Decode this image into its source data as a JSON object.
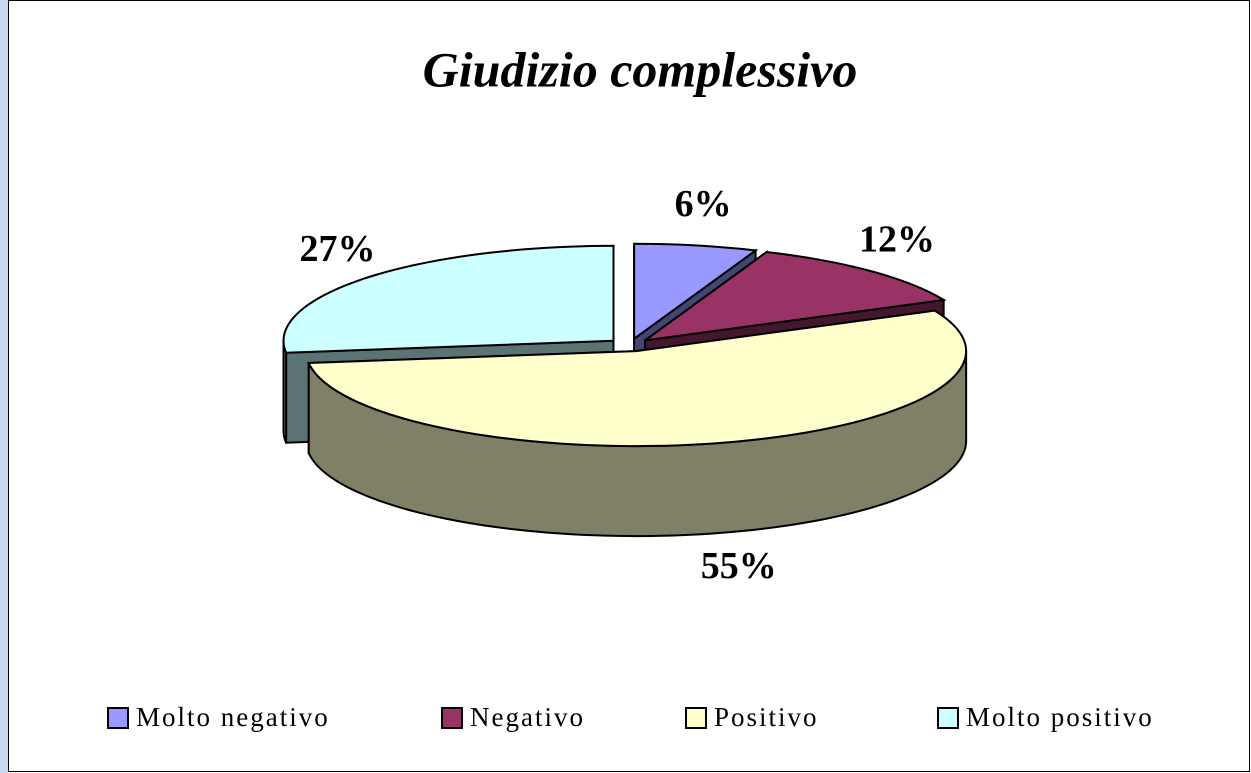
{
  "chart_data": {
    "type": "pie",
    "title": "Giudizio complessivo",
    "categories": [
      "Molto negativo",
      "Negativo",
      "Positivo",
      "Molto positivo"
    ],
    "values": [
      6,
      12,
      55,
      27
    ],
    "value_labels": [
      "6%",
      "12%",
      "55%",
      "27%"
    ],
    "colors": [
      "#9999ff",
      "#993366",
      "#ffffcc",
      "#ccffff"
    ],
    "legend": "bottom"
  }
}
